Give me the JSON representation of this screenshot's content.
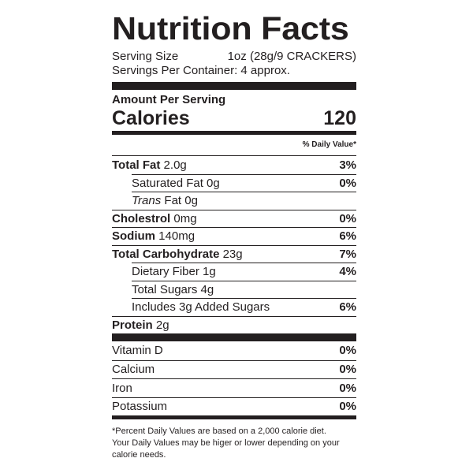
{
  "title": "Nutrition Facts",
  "serving_size_label": "Serving Size",
  "serving_size_value": "1oz (28g/9 CRACKERS)",
  "servings_per_container": "Servings Per Container: 4 approx.",
  "amount_per_serving": "Amount Per Serving",
  "calories_label": "Calories",
  "calories_value": "120",
  "daily_value_header": "% Daily Value*",
  "nutrients": [
    {
      "name": "Total Fat",
      "amount": " 2.0g",
      "dv": "3%"
    },
    {
      "name": "Saturated Fat 0g",
      "amount": "",
      "dv": "0%"
    },
    {
      "name_italic": "Trans",
      "name_rest": " Fat 0g",
      "dv": ""
    },
    {
      "name": "Cholestrol",
      "amount": " 0mg",
      "dv": "0%"
    },
    {
      "name": "Sodium",
      "amount": " 140mg",
      "dv": "6%"
    },
    {
      "name": "Total Carbohydrate",
      "amount": " 23g",
      "dv": "7%"
    },
    {
      "name": "Dietary Fiber 1g",
      "amount": "",
      "dv": "4%"
    },
    {
      "name": "Total Sugars 4g",
      "amount": "",
      "dv": ""
    },
    {
      "name": "Includes 3g Added Sugars",
      "amount": "",
      "dv": "6%"
    },
    {
      "name": "Protein",
      "amount": " 2g",
      "dv": ""
    }
  ],
  "vitamins": [
    {
      "name": "Vitamin D",
      "dv": "0%"
    },
    {
      "name": "Calcium",
      "dv": "0%"
    },
    {
      "name": "Iron",
      "dv": "0%"
    },
    {
      "name": "Potassium",
      "dv": "0%"
    }
  ],
  "footnote": {
    "line1": "*Percent Daily Values are based on a 2,000 calorie diet.",
    "line2": "Your Daily Values may be higer or lower depending on your",
    "line3": "calorie needs."
  }
}
